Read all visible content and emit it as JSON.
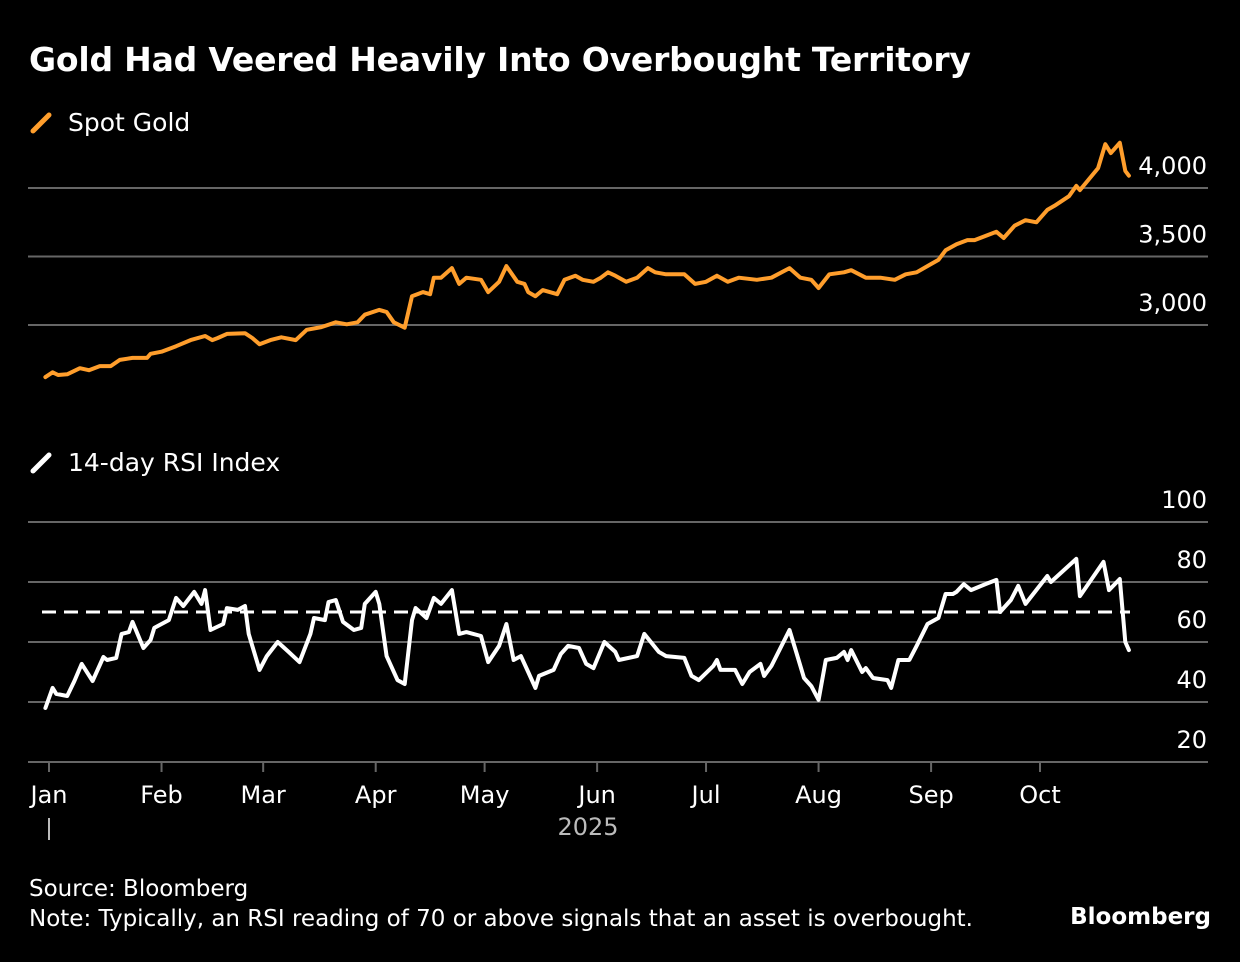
{
  "header": {
    "title": "Gold Had Veered Heavily Into Overbought Territory"
  },
  "footer": {
    "source": "Source: Bloomberg",
    "note": "Note: Typically, an RSI reading of 70 or above signals that an asset is overbought.",
    "brand": "Bloomberg"
  },
  "colors": {
    "background": "#000000",
    "gold_series": "#FF9E2C",
    "rsi_series": "#FFFFFF",
    "gridline": "#666666",
    "text": "#FFFFFF",
    "year_label": "#BBBBBB"
  },
  "chart_data": [
    {
      "type": "line",
      "title": "Spot Gold",
      "legend": "Spot Gold",
      "legend_position": "top-left",
      "grid": true,
      "x_unit": "day of year 2025 (0 = Jan 1)",
      "xlim": [
        0,
        300
      ],
      "ylim": [
        2550,
        4350
      ],
      "yticks": [
        3000,
        3500,
        4000
      ],
      "ytick_labels": [
        "3,000",
        "3,500",
        "4,000"
      ],
      "series": [
        {
          "name": "Spot Gold",
          "x": [
            -1,
            1,
            2.5,
            5,
            8.5,
            11,
            14,
            17,
            19.5,
            23,
            27,
            28,
            31,
            35,
            39,
            43,
            45,
            46.5,
            49,
            54,
            56,
            58,
            61,
            64,
            68,
            71,
            75,
            79,
            82,
            85,
            87,
            91,
            93,
            95,
            98,
            100,
            103,
            105,
            106,
            108,
            111,
            113,
            115,
            119,
            121,
            124,
            126,
            129,
            131,
            132,
            134,
            136,
            140,
            142,
            145,
            147,
            150,
            152,
            154,
            156,
            159,
            162,
            165,
            167,
            170,
            175,
            178,
            181,
            184,
            187,
            190,
            195,
            199,
            204,
            207,
            210,
            212,
            215,
            219,
            221,
            225,
            229,
            233,
            236,
            239,
            243,
            245,
            247,
            250,
            253,
            255,
            261,
            263,
            266,
            269,
            272,
            275,
            277,
            281,
            283,
            284,
            289,
            291,
            292.5,
            295,
            296.5,
            297.5
          ],
          "y": [
            2620,
            2655,
            2635,
            2640,
            2685,
            2670,
            2700,
            2700,
            2745,
            2760,
            2760,
            2790,
            2805,
            2845,
            2890,
            2920,
            2890,
            2905,
            2935,
            2940,
            2905,
            2860,
            2890,
            2910,
            2890,
            2965,
            2985,
            3020,
            3005,
            3020,
            3075,
            3110,
            3095,
            3020,
            2980,
            3210,
            3240,
            3225,
            3345,
            3345,
            3415,
            3300,
            3345,
            3330,
            3240,
            3315,
            3430,
            3315,
            3300,
            3240,
            3210,
            3255,
            3225,
            3330,
            3360,
            3330,
            3315,
            3345,
            3385,
            3360,
            3315,
            3345,
            3415,
            3385,
            3370,
            3370,
            3300,
            3315,
            3360,
            3315,
            3345,
            3330,
            3345,
            3415,
            3345,
            3330,
            3270,
            3370,
            3385,
            3400,
            3345,
            3345,
            3330,
            3370,
            3385,
            3445,
            3475,
            3545,
            3590,
            3620,
            3620,
            3680,
            3635,
            3725,
            3765,
            3750,
            3840,
            3870,
            3940,
            4015,
            3985,
            4145,
            4320,
            4255,
            4330,
            4125,
            4090
          ]
        }
      ]
    },
    {
      "type": "line",
      "title": "14-day RSI Index",
      "legend": "14-day RSI Index",
      "legend_position": "top-left",
      "grid": true,
      "x_unit": "day of year 2025 (0 = Jan 1)",
      "xlim": [
        0,
        300
      ],
      "ylim": [
        20,
        100
      ],
      "yticks": [
        20,
        40,
        60,
        80,
        100
      ],
      "ytick_labels": [
        "20",
        "40",
        "60",
        "80",
        "100"
      ],
      "reference_line": {
        "value": 70,
        "style": "dashed",
        "meaning": "overbought threshold"
      },
      "xticks": [
        0,
        31,
        59,
        90,
        120,
        151,
        181,
        212,
        243,
        273
      ],
      "xtick_labels": [
        "Jan",
        "Feb",
        "Mar",
        "Apr",
        "May",
        "Jun",
        "Jul",
        "Aug",
        "Sep",
        "Oct"
      ],
      "xlabel": "2025",
      "series": [
        {
          "name": "14-day RSI Index",
          "x": [
            -1,
            1,
            2,
            5,
            7,
            9,
            12,
            15,
            16,
            18.5,
            20,
            22,
            23,
            26,
            28,
            29,
            33,
            35,
            37,
            40,
            42,
            43,
            44.5,
            48,
            49,
            52,
            54,
            55,
            58,
            60,
            63,
            66,
            69,
            72,
            73,
            76,
            77,
            79,
            81,
            84,
            86,
            87,
            90,
            91,
            93,
            96,
            98,
            100,
            101,
            104,
            106,
            108,
            111,
            113,
            115,
            119,
            121,
            124,
            126,
            128,
            130,
            132,
            134,
            135,
            139,
            141,
            143,
            146,
            148,
            150,
            153,
            156,
            157,
            162,
            164,
            168,
            170,
            175,
            177,
            179,
            183,
            184,
            185,
            189,
            191,
            193,
            196,
            197,
            199,
            204,
            206,
            208,
            210,
            212,
            214,
            217,
            219,
            220,
            221,
            224,
            225,
            227,
            231,
            232,
            234,
            237,
            239,
            242,
            245,
            247,
            249,
            250,
            252,
            254,
            258,
            261,
            262,
            265,
            267,
            269,
            275,
            276,
            283,
            284,
            290.5,
            292,
            295,
            296.5,
            297.5
          ],
          "y": [
            38,
            44.7,
            42.7,
            42,
            47,
            52.7,
            47,
            55,
            54,
            54.7,
            62.7,
            63.3,
            66.7,
            58,
            60.7,
            64.7,
            67.3,
            74.7,
            72,
            76.7,
            72.7,
            77.3,
            64,
            66,
            71.3,
            70.7,
            72,
            62.7,
            50.7,
            55.3,
            60,
            56.7,
            53.3,
            62.7,
            68,
            67.3,
            73.3,
            74,
            66.7,
            64,
            64.7,
            72.7,
            76.7,
            72.7,
            55.3,
            47.3,
            46,
            67.3,
            71.3,
            68,
            74.7,
            72.7,
            77.3,
            62.7,
            63.3,
            62,
            53.3,
            58.7,
            66,
            54,
            55.3,
            50,
            44.7,
            48.7,
            50.7,
            56,
            58.7,
            58,
            52.7,
            51.3,
            60,
            56.7,
            54,
            55.3,
            62.7,
            56.7,
            55.3,
            54.7,
            48.7,
            47.3,
            52,
            54,
            50.7,
            50.7,
            46,
            50,
            52.7,
            48.7,
            52,
            64,
            56,
            48,
            45.3,
            40.7,
            54,
            54.7,
            56.7,
            54,
            57.3,
            50,
            51.3,
            48,
            47.3,
            44.7,
            54,
            54,
            58.7,
            66,
            68,
            76,
            76,
            76.7,
            79.3,
            77.3,
            79.3,
            80.7,
            70,
            74,
            78.7,
            72.7,
            82,
            80,
            87.7,
            75.3,
            86.7,
            77.3,
            81,
            60,
            57.3
          ]
        }
      ]
    }
  ]
}
